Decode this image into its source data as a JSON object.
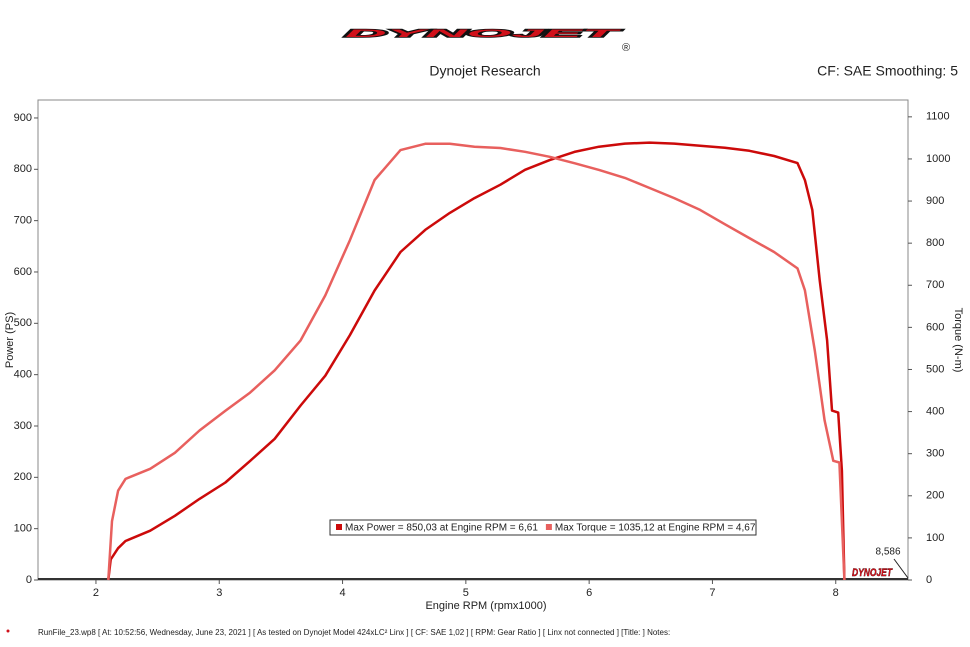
{
  "header": {
    "logo": "DYNOJET",
    "registered": "®",
    "company": "Dynojet Research",
    "settings": "CF: SAE Smoothing: 5"
  },
  "chart_data": {
    "type": "line",
    "x_label": "Engine RPM (rpmx1000)",
    "y_label": "Power (PS)",
    "y2_label": "Torque (N-m)",
    "xlim": [
      1.53,
      8.586
    ],
    "xticks": [
      2,
      3,
      4,
      5,
      6,
      7,
      8
    ],
    "ylim": [
      0,
      935
    ],
    "yticks": [
      0,
      100,
      200,
      300,
      400,
      500,
      600,
      700,
      800,
      900
    ],
    "y2lim": [
      0,
      1140
    ],
    "y2ticks": [
      0,
      100,
      200,
      300,
      400,
      500,
      600,
      700,
      800,
      900,
      1000,
      1100
    ],
    "x_end": {
      "value": 8.586,
      "label": "8,586"
    },
    "watermark": "DYNOJET",
    "series": [
      {
        "name": "Max Power = 850,03 at Engine RPM = 6,61",
        "color": "#cc0a0a",
        "x": [
          2.1,
          2.12,
          2.18,
          2.24,
          2.44,
          2.64,
          2.84,
          3.05,
          3.25,
          3.45,
          3.66,
          3.86,
          4.06,
          4.26,
          4.47,
          4.67,
          4.87,
          5.07,
          5.28,
          5.48,
          5.68,
          5.88,
          6.08,
          6.29,
          6.49,
          6.69,
          6.9,
          7.1,
          7.3,
          7.5,
          7.69,
          7.75,
          7.81,
          7.87,
          7.93,
          7.97,
          8.02,
          8.05,
          8.07
        ],
        "values": [
          0,
          40,
          62,
          76,
          96,
          125,
          158,
          190,
          232,
          275,
          340,
          398,
          477,
          564,
          639,
          682,
          715,
          744,
          770,
          799,
          818,
          834,
          844,
          850,
          852,
          850,
          846,
          842,
          836,
          826,
          812,
          779,
          721,
          584,
          467,
          330,
          326,
          213,
          0
        ]
      },
      {
        "name": "Max Torque = 1035,12 at Engine RPM = 4,67",
        "color": "#e8605e",
        "axis": "y2",
        "x": [
          2.1,
          2.13,
          2.18,
          2.24,
          2.44,
          2.64,
          2.84,
          3.05,
          3.25,
          3.45,
          3.66,
          3.86,
          4.06,
          4.26,
          4.47,
          4.67,
          4.87,
          5.07,
          5.28,
          5.48,
          5.68,
          5.88,
          6.08,
          6.29,
          6.49,
          6.69,
          6.9,
          7.1,
          7.3,
          7.5,
          7.69,
          7.75,
          7.83,
          7.91,
          7.98,
          8.03,
          8.07
        ],
        "values": [
          0,
          140,
          212,
          240,
          264,
          302,
          355,
          402,
          445,
          498,
          569,
          676,
          807,
          950,
          1021,
          1036,
          1036,
          1029,
          1026,
          1017,
          1005,
          990,
          974,
          955,
          931,
          907,
          879,
          845,
          812,
          779,
          740,
          688,
          545,
          379,
          283,
          279,
          0
        ]
      }
    ]
  },
  "footer": "RunFile_23.wp8 [ At: 10:52:56, Wednesday, June 23, 2021 ] [ As tested on Dynojet Model 424xLC² Linx ] [ CF: SAE 1,02 ] [ RPM: Gear Ratio ] [ Linx not connected ] [Title: ]  Notes:"
}
